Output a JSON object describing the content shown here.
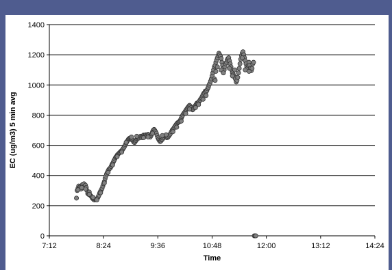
{
  "chart_data": {
    "type": "scatter",
    "title": "",
    "xlabel": "Time",
    "ylabel": "EC (ug/m3) 5 min avg",
    "x_tick_labels": [
      "7:12",
      "8:24",
      "9:36",
      "10:48",
      "12:00",
      "13:12",
      "14:24"
    ],
    "x_ticks_minutes": [
      432,
      504,
      576,
      648,
      720,
      792,
      864
    ],
    "xlim_minutes": [
      432,
      864
    ],
    "ylim": [
      0,
      1400
    ],
    "y_ticks": [
      0,
      200,
      400,
      600,
      800,
      1000,
      1200,
      1400
    ],
    "y_tick_labels": [
      "0",
      "200",
      "400",
      "600",
      "800",
      "1000",
      "1200",
      "1400"
    ],
    "grid": "horizontal",
    "legend": "none",
    "marker_color": "#808080",
    "marker_edge_color": "#333333",
    "x_unit": "minutes after midnight",
    "series": [
      {
        "values": [
          [
            468,
            250
          ],
          [
            469,
            300
          ],
          [
            470,
            315
          ],
          [
            471,
            330
          ],
          [
            472,
            320
          ],
          [
            473,
            325
          ],
          [
            474,
            310
          ],
          [
            475,
            330
          ],
          [
            476,
            340
          ],
          [
            477,
            325
          ],
          [
            478,
            345
          ],
          [
            479,
            330
          ],
          [
            480,
            335
          ],
          [
            481,
            320
          ],
          [
            482,
            300
          ],
          [
            483,
            280
          ],
          [
            484,
            275
          ],
          [
            485,
            290
          ],
          [
            486,
            270
          ],
          [
            487,
            265
          ],
          [
            488,
            260
          ],
          [
            489,
            250
          ],
          [
            490,
            245
          ],
          [
            491,
            240
          ],
          [
            492,
            238
          ],
          [
            493,
            242
          ],
          [
            494,
            240
          ],
          [
            495,
            245
          ],
          [
            496,
            250
          ],
          [
            497,
            260
          ],
          [
            498,
            270
          ],
          [
            499,
            285
          ],
          [
            500,
            295
          ],
          [
            501,
            305
          ],
          [
            502,
            315
          ],
          [
            503,
            330
          ],
          [
            504,
            345
          ],
          [
            505,
            360
          ],
          [
            506,
            380
          ],
          [
            507,
            395
          ],
          [
            508,
            410
          ],
          [
            509,
            420
          ],
          [
            510,
            430
          ],
          [
            511,
            440
          ],
          [
            512,
            445
          ],
          [
            513,
            450
          ],
          [
            514,
            460
          ],
          [
            515,
            470
          ],
          [
            516,
            480
          ],
          [
            517,
            490
          ],
          [
            518,
            500
          ],
          [
            519,
            510
          ],
          [
            520,
            520
          ],
          [
            521,
            525
          ],
          [
            522,
            535
          ],
          [
            523,
            540
          ],
          [
            524,
            545
          ],
          [
            525,
            550
          ],
          [
            526,
            555
          ],
          [
            527,
            560
          ],
          [
            528,
            565
          ],
          [
            529,
            570
          ],
          [
            530,
            578
          ],
          [
            531,
            585
          ],
          [
            532,
            595
          ],
          [
            533,
            605
          ],
          [
            534,
            615
          ],
          [
            535,
            625
          ],
          [
            536,
            632
          ],
          [
            537,
            640
          ],
          [
            538,
            645
          ],
          [
            539,
            648
          ],
          [
            540,
            650
          ],
          [
            541,
            642
          ],
          [
            542,
            635
          ],
          [
            543,
            630
          ],
          [
            544,
            622
          ],
          [
            545,
            618
          ],
          [
            546,
            625
          ],
          [
            547,
            632
          ],
          [
            548,
            640
          ],
          [
            549,
            645
          ],
          [
            550,
            650
          ],
          [
            551,
            648
          ],
          [
            552,
            655
          ],
          [
            553,
            660
          ],
          [
            554,
            655
          ],
          [
            555,
            650
          ],
          [
            556,
            660
          ],
          [
            557,
            668
          ],
          [
            558,
            665
          ],
          [
            559,
            660
          ],
          [
            560,
            670
          ],
          [
            561,
            665
          ],
          [
            562,
            662
          ],
          [
            563,
            672
          ],
          [
            564,
            668
          ],
          [
            565,
            660
          ],
          [
            566,
            655
          ],
          [
            567,
            665
          ],
          [
            568,
            675
          ],
          [
            569,
            690
          ],
          [
            570,
            700
          ],
          [
            571,
            705
          ],
          [
            572,
            698
          ],
          [
            573,
            690
          ],
          [
            574,
            680
          ],
          [
            575,
            665
          ],
          [
            576,
            650
          ],
          [
            577,
            640
          ],
          [
            578,
            632
          ],
          [
            579,
            625
          ],
          [
            580,
            628
          ],
          [
            581,
            635
          ],
          [
            582,
            640
          ],
          [
            583,
            648
          ],
          [
            584,
            655
          ],
          [
            585,
            662
          ],
          [
            586,
            660
          ],
          [
            587,
            655
          ],
          [
            588,
            650
          ],
          [
            589,
            652
          ],
          [
            590,
            658
          ],
          [
            591,
            665
          ],
          [
            592,
            672
          ],
          [
            593,
            680
          ],
          [
            594,
            690
          ],
          [
            595,
            700
          ],
          [
            596,
            705
          ],
          [
            597,
            712
          ],
          [
            598,
            720
          ],
          [
            599,
            728
          ],
          [
            600,
            735
          ],
          [
            601,
            742
          ],
          [
            602,
            748
          ],
          [
            603,
            752
          ],
          [
            604,
            755
          ],
          [
            605,
            760
          ],
          [
            606,
            768
          ],
          [
            607,
            778
          ],
          [
            608,
            790
          ],
          [
            609,
            800
          ],
          [
            610,
            808
          ],
          [
            611,
            815
          ],
          [
            612,
            822
          ],
          [
            613,
            830
          ],
          [
            614,
            838
          ],
          [
            615,
            845
          ],
          [
            616,
            852
          ],
          [
            617,
            858
          ],
          [
            618,
            865
          ],
          [
            619,
            860
          ],
          [
            620,
            850
          ],
          [
            621,
            840
          ],
          [
            622,
            835
          ],
          [
            623,
            840
          ],
          [
            624,
            848
          ],
          [
            625,
            856
          ],
          [
            626,
            865
          ],
          [
            627,
            872
          ],
          [
            628,
            880
          ],
          [
            629,
            878
          ],
          [
            630,
            885
          ],
          [
            631,
            892
          ],
          [
            632,
            900
          ],
          [
            633,
            908
          ],
          [
            634,
            915
          ],
          [
            635,
            925
          ],
          [
            636,
            935
          ],
          [
            637,
            945
          ],
          [
            638,
            950
          ],
          [
            639,
            960
          ],
          [
            640,
            955
          ],
          [
            641,
            962
          ],
          [
            642,
            975
          ],
          [
            643,
            985
          ],
          [
            644,
            1000
          ],
          [
            645,
            1010
          ],
          [
            646,
            1025
          ],
          [
            647,
            1040
          ],
          [
            648,
            1060
          ],
          [
            649,
            1080
          ],
          [
            650,
            1100
          ],
          [
            651,
            1120
          ],
          [
            652,
            1130
          ],
          [
            653,
            1150
          ],
          [
            654,
            1165
          ],
          [
            655,
            1180
          ],
          [
            656,
            1195
          ],
          [
            657,
            1210
          ],
          [
            658,
            1200
          ],
          [
            659,
            1190
          ],
          [
            660,
            1175
          ],
          [
            661,
            1150
          ],
          [
            662,
            1130
          ],
          [
            663,
            1110
          ],
          [
            664,
            1100
          ],
          [
            665,
            1120
          ],
          [
            666,
            1140
          ],
          [
            667,
            1150
          ],
          [
            668,
            1165
          ],
          [
            669,
            1175
          ],
          [
            670,
            1180
          ],
          [
            671,
            1160
          ],
          [
            672,
            1140
          ],
          [
            673,
            1120
          ],
          [
            674,
            1100
          ],
          [
            675,
            1080
          ],
          [
            676,
            1070
          ],
          [
            677,
            1060
          ],
          [
            678,
            1050
          ],
          [
            679,
            1040
          ],
          [
            680,
            1020
          ],
          [
            681,
            1030
          ],
          [
            682,
            1050
          ],
          [
            683,
            1080
          ],
          [
            684,
            1110
          ],
          [
            685,
            1140
          ],
          [
            686,
            1170
          ],
          [
            687,
            1195
          ],
          [
            688,
            1210
          ],
          [
            689,
            1220
          ],
          [
            690,
            1200
          ],
          [
            691,
            1180
          ],
          [
            692,
            1160
          ],
          [
            693,
            1140
          ],
          [
            694,
            1120
          ],
          [
            695,
            1110
          ],
          [
            696,
            1130
          ],
          [
            697,
            1150
          ],
          [
            698,
            1130
          ],
          [
            699,
            1110
          ],
          [
            700,
            1095
          ],
          [
            701,
            1110
          ],
          [
            702,
            1140
          ],
          [
            703,
            1150
          ],
          [
            651,
            1040
          ],
          [
            652,
            1030
          ],
          [
            653,
            1090
          ],
          [
            655,
            1120
          ],
          [
            660,
            1100
          ],
          [
            663,
            1080
          ],
          [
            671,
            1110
          ],
          [
            675,
            1060
          ],
          [
            678,
            1100
          ],
          [
            688,
            1180
          ],
          [
            692,
            1100
          ],
          [
            697,
            1090
          ],
          [
            640,
            930
          ],
          [
            636,
            905
          ],
          [
            630,
            870
          ],
          [
            626,
            850
          ],
          [
            618,
            840
          ],
          [
            613,
            810
          ],
          [
            607,
            760
          ],
          [
            601,
            720
          ],
          [
            596,
            690
          ],
          [
            587,
            670
          ],
          [
            582,
            665
          ],
          [
            569,
            680
          ],
          [
            563,
            655
          ],
          [
            557,
            650
          ],
          [
            548,
            660
          ],
          [
            541,
            655
          ],
          [
            534,
            620
          ],
          [
            528,
            555
          ],
          [
            522,
            525
          ],
          [
            516,
            470
          ],
          [
            510,
            420
          ],
          [
            505,
            350
          ],
          [
            500,
            285
          ],
          [
            495,
            238
          ],
          [
            490,
            255
          ],
          [
            485,
            275
          ],
          [
            480,
            310
          ],
          [
            475,
            320
          ],
          [
            470,
            305
          ],
          [
            704,
            0
          ],
          [
            705,
            0
          ],
          [
            706,
            0
          ]
        ]
      }
    ]
  }
}
